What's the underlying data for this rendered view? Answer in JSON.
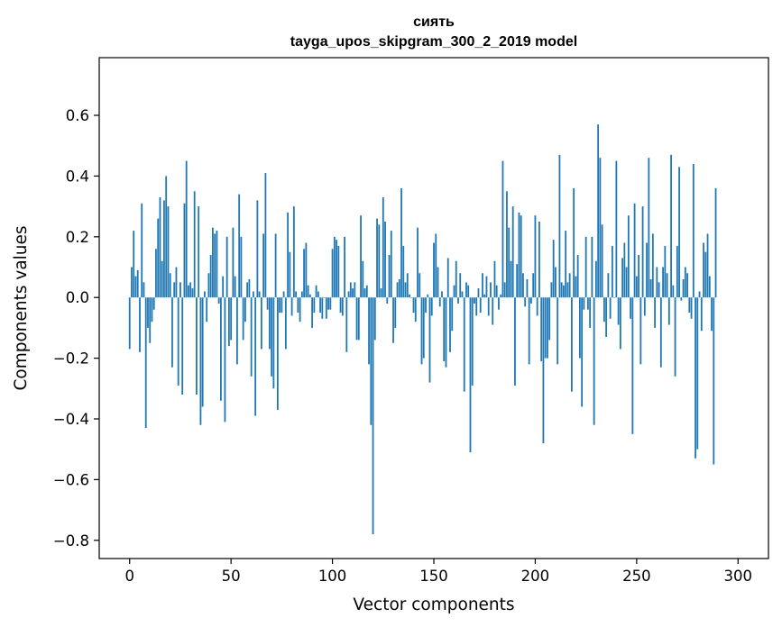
{
  "chart_data": {
    "type": "bar",
    "title": "сиять",
    "subtitle": "tayga_upos_skipgram_300_2_2019 model",
    "xlabel": "Vector components",
    "ylabel": "Components values",
    "xlim": [
      -15,
      315
    ],
    "ylim": [
      -0.86,
      0.79
    ],
    "xticks": [
      0,
      50,
      100,
      150,
      200,
      250,
      300
    ],
    "xtick_labels": [
      "0",
      "50",
      "100",
      "150",
      "200",
      "250",
      "300"
    ],
    "yticks": [
      -0.8,
      -0.6,
      -0.4,
      -0.2,
      0.0,
      0.2,
      0.4,
      0.6
    ],
    "ytick_labels": [
      "−0.8",
      "−0.6",
      "−0.4",
      "−0.2",
      "0.0",
      "0.2",
      "0.4",
      "0.6"
    ],
    "grid": false,
    "bar_color": "#1f77b4",
    "x_start": 0,
    "values": [
      -0.17,
      0.1,
      0.22,
      0.07,
      0.09,
      -0.18,
      0.31,
      0.05,
      -0.43,
      -0.1,
      -0.15,
      -0.08,
      -0.04,
      0.16,
      0.26,
      0.33,
      0.12,
      0.32,
      0.4,
      0.3,
      0.08,
      -0.23,
      0.05,
      0.1,
      -0.29,
      0.05,
      -0.32,
      0.31,
      0.45,
      0.04,
      0.05,
      0.03,
      0.35,
      -0.32,
      0.3,
      -0.42,
      -0.36,
      0.02,
      -0.08,
      0.08,
      0.14,
      0.23,
      0.21,
      0.22,
      -0.02,
      -0.34,
      0.07,
      -0.41,
      0.2,
      -0.16,
      -0.14,
      0.23,
      0.07,
      -0.22,
      0.34,
      0.2,
      -0.14,
      -0.08,
      0.05,
      0.06,
      -0.26,
      0.02,
      -0.39,
      0.32,
      0.02,
      -0.17,
      0.21,
      0.41,
      -0.04,
      -0.17,
      -0.26,
      -0.3,
      0.21,
      -0.37,
      -0.05,
      -0.05,
      0.02,
      -0.17,
      0.28,
      0.15,
      -0.06,
      0.3,
      0.02,
      -0.05,
      -0.08,
      0.02,
      0.16,
      0.18,
      0.04,
      0.01,
      -0.1,
      -0.05,
      0.04,
      0.02,
      -0.05,
      -0.07,
      0.0,
      -0.07,
      -0.04,
      -0.04,
      0.16,
      0.2,
      0.19,
      0.17,
      -0.05,
      -0.06,
      0.2,
      -0.18,
      0.02,
      0.05,
      0.03,
      0.05,
      -0.14,
      -0.14,
      0.27,
      0.12,
      0.03,
      0.04,
      -0.22,
      -0.42,
      -0.78,
      -0.14,
      0.26,
      0.24,
      0.03,
      0.33,
      0.25,
      -0.02,
      0.14,
      0.22,
      -0.15,
      -0.1,
      0.05,
      0.06,
      0.36,
      0.17,
      0.05,
      0.08,
      0.01,
      0.0,
      -0.05,
      -0.08,
      0.23,
      0.08,
      -0.22,
      -0.2,
      -0.05,
      0.01,
      -0.28,
      -0.06,
      0.18,
      0.21,
      0.1,
      -0.03,
      0.02,
      -0.21,
      -0.23,
      0.13,
      -0.18,
      -0.11,
      0.04,
      0.12,
      -0.02,
      0.08,
      0.02,
      -0.31,
      0.05,
      0.04,
      -0.51,
      -0.29,
      -0.02,
      -0.06,
      0.03,
      -0.05,
      0.08,
      0.01,
      0.07,
      -0.06,
      0.05,
      -0.09,
      0.12,
      0.04,
      -0.04,
      0.01,
      0.45,
      0.05,
      0.35,
      0.23,
      0.12,
      0.3,
      -0.29,
      0.11,
      0.28,
      0.27,
      0.08,
      -0.03,
      0.06,
      -0.22,
      -0.02,
      0.08,
      0.27,
      -0.06,
      0.25,
      -0.21,
      -0.48,
      -0.2,
      -0.2,
      -0.14,
      0.05,
      0.19,
      0.1,
      -0.22,
      0.47,
      0.05,
      0.04,
      0.22,
      0.05,
      0.08,
      -0.31,
      0.36,
      0.07,
      0.14,
      -0.2,
      -0.36,
      -0.04,
      0.2,
      -0.04,
      -0.1,
      0.2,
      -0.42,
      0.12,
      0.57,
      0.46,
      0.24,
      -0.08,
      -0.13,
      0.08,
      -0.07,
      0.17,
      0.0,
      0.45,
      -0.09,
      -0.17,
      0.13,
      0.18,
      0.1,
      0.27,
      -0.07,
      -0.45,
      0.31,
      0.07,
      0.14,
      -0.22,
      0.3,
      -0.06,
      0.18,
      0.46,
      0.06,
      0.21,
      -0.1,
      0.1,
      0.05,
      -0.23,
      0.1,
      0.17,
      0.08,
      -0.09,
      0.47,
      0.04,
      -0.26,
      0.17,
      0.43,
      -0.01,
      0.06,
      0.1,
      0.08,
      -0.05,
      -0.07,
      0.44,
      -0.53,
      -0.5,
      0.02,
      -0.11,
      0.18,
      0.15,
      0.21,
      0.07,
      -0.11,
      -0.55,
      0.36
    ]
  }
}
